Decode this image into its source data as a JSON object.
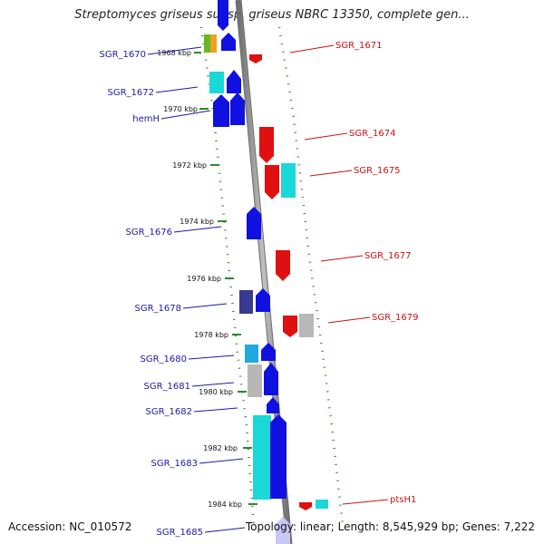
{
  "title": "Streptomyces griseus subsp. griseus NBRC 13350, complete gen...",
  "footer": {
    "accession": "Accession: NC_010572",
    "topology": "Topology: linear; Length: 8,545,929 bp; Genes: 7,222"
  },
  "colors": {
    "backbone": "#8a8a8a",
    "left_label": "#1a1aaa",
    "right_label": "#cc1111",
    "dotted_border": "#2a8a2a",
    "blue": "#1010e0",
    "cyan": "#1ad8d8",
    "red": "#e01010",
    "gray": "#b8b8b8",
    "navy": "#3a3a90",
    "green": "#6ab820",
    "orange": "#f0a020",
    "sky": "#20a8e0"
  },
  "kbp_ticks": [
    "1968 kbp",
    "1970 kbp",
    "1972 kbp",
    "1974 kbp",
    "1976 kbp",
    "1978 kbp",
    "1980 kbp",
    "1982 kbp",
    "1984 kbp"
  ],
  "left_genes": [
    "SGR_1670",
    "SGR_1672",
    "hemH",
    "SGR_1676",
    "SGR_1678",
    "SGR_1680",
    "SGR_1681",
    "SGR_1682",
    "SGR_1683",
    "SGR_1685"
  ],
  "right_genes": [
    "SGR_1671",
    "SGR_1674",
    "SGR_1675",
    "SGR_1677",
    "SGR_1679",
    "ptsH1"
  ]
}
